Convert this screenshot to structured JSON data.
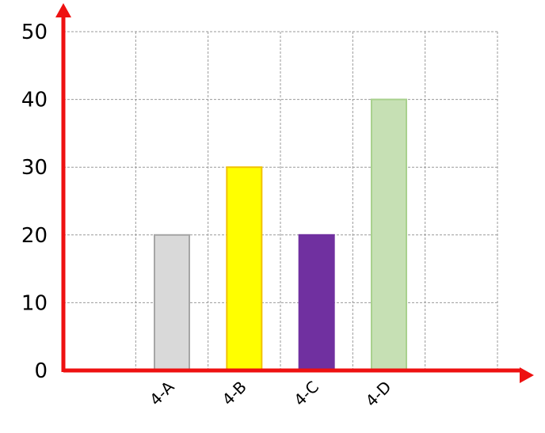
{
  "chart_data": {
    "type": "bar",
    "categories": [
      "4-A",
      "4-B",
      "4-C",
      "4-D"
    ],
    "values": [
      20,
      30,
      20,
      40
    ],
    "title": "",
    "xlabel": "",
    "ylabel": "",
    "ylim": [
      0,
      50
    ],
    "y_ticks": [
      "0",
      "10",
      "20",
      "30",
      "40",
      "50"
    ],
    "grid": true,
    "axis_color": "#ee1111",
    "grid_color": "#9a9a9a",
    "bar_colors": [
      {
        "fill": "#d9d9d9",
        "stroke": "#a6a6a6"
      },
      {
        "fill": "#ffff00",
        "stroke": "#f2c200"
      },
      {
        "fill": "#7030a0",
        "stroke": "#7030a0"
      },
      {
        "fill": "#c6e0b4",
        "stroke": "#a9d18e"
      }
    ]
  }
}
